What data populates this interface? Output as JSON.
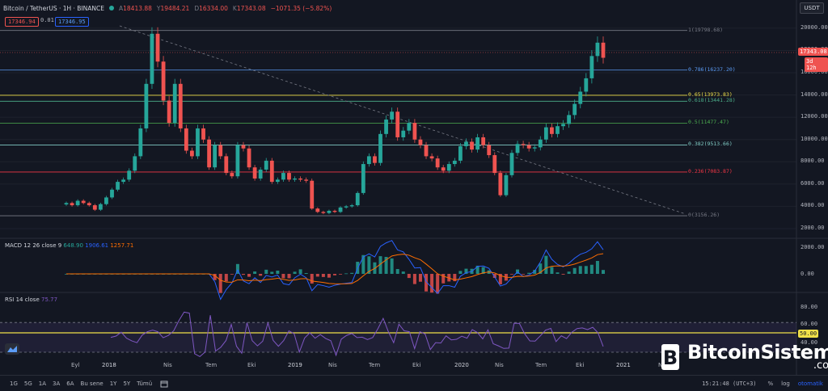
{
  "header": {
    "symbol": "Bitcoin / TetherUS · 1H · BINANCE",
    "open_label": "A",
    "open": "18413.88",
    "high_label": "Y",
    "high": "19484.21",
    "low_label": "D",
    "low": "16334.00",
    "close_label": "K",
    "close": "17343.08",
    "change": "−1071.35 (−5.82%)",
    "sell_price": "17346.94",
    "spread": "0.01",
    "buy_price": "17346.95"
  },
  "price_axis": {
    "currency": "USDT",
    "ticks": [
      "20000.00",
      "18000.00",
      "16000.00",
      "14000.00",
      "12000.00",
      "10000.00",
      "8000.00",
      "6000.00",
      "4000.00",
      "2000.00"
    ],
    "last_price": "17343.08",
    "countdown": "3d 12h"
  },
  "fib_levels": [
    {
      "label": "1(19798.68)",
      "value": 19798.68,
      "color": "#787b86"
    },
    {
      "label": "0.786(16237.20)",
      "value": 16237.2,
      "color": "#5b9cf6"
    },
    {
      "label": "0.65(13973.83)",
      "value": 13973.83,
      "color": "#f0e049"
    },
    {
      "label": "0.618(13441.28)",
      "value": 13441.28,
      "color": "#4caf8a"
    },
    {
      "label": "0.5(11477.47)",
      "value": 11477.47,
      "color": "#4caf50"
    },
    {
      "label": "0.382(9513.66)",
      "value": 9513.66,
      "color": "#80cbc4"
    },
    {
      "label": "0.236(7083.87)",
      "value": 7083.87,
      "color": "#f23645"
    },
    {
      "label": "0(3156.26)",
      "value": 3156.26,
      "color": "#787b86"
    }
  ],
  "macd": {
    "title": "MACD 12 26 close 9",
    "v1": "648.90",
    "v2": "1906.61",
    "v3": "1257.71",
    "ticks": [
      "2000.00",
      "0.00"
    ]
  },
  "rsi": {
    "title": "RSI 14 close",
    "value": "75.77",
    "ticks": [
      "80.00",
      "60.00",
      "50.00",
      "40.00"
    ]
  },
  "time_axis": [
    "Eyl",
    "2018",
    "Nis",
    "Tem",
    "Eki",
    "2019",
    "Nis",
    "Tem",
    "Eki",
    "2020",
    "Nis",
    "Tem",
    "Eki",
    "2021",
    "N"
  ],
  "bottom_bar": {
    "timeframes": [
      "1G",
      "5G",
      "1A",
      "3A",
      "6A",
      "Bu sene",
      "1Y",
      "5Y",
      "Tümü"
    ],
    "clock": "15:21:48 (UTC+3)",
    "percent": "%",
    "log": "log",
    "auto": "otomatik"
  },
  "watermark": {
    "brand": "BitcoinSistemi",
    "suffix": ".com"
  },
  "chart_data": {
    "type": "candlestick",
    "series": [
      {
        "name": "Bitcoin / TetherUS",
        "values": [
          4300,
          4100,
          4500,
          4300,
          4100,
          3700,
          4200,
          4800,
          5500,
          6200,
          6400,
          7200,
          8500,
          11000,
          15000,
          19500,
          17000,
          13500,
          11500,
          15000,
          11000,
          9000,
          8500,
          11000,
          10000,
          7500,
          9500,
          8500,
          7000,
          6700,
          9500,
          9200,
          7500,
          6500,
          7300,
          8100,
          6200,
          6400,
          7000,
          6400,
          6500,
          6400,
          6300,
          3800,
          3500,
          3400,
          3600,
          3500,
          3900,
          4000,
          4100,
          5200,
          7800,
          8500,
          7900,
          10500,
          11800,
          12500,
          10200,
          10800,
          11500,
          10000,
          9500,
          8500,
          8300,
          7500,
          7200,
          7800,
          8100,
          9400,
          9800,
          9100,
          10200,
          9500,
          8600,
          7000,
          5000,
          6800,
          8800,
          9600,
          9500,
          9200,
          9300,
          10000,
          11100,
          10500,
          11200,
          11400,
          12200,
          13200,
          14300,
          15500,
          17500,
          18700,
          17343
        ]
      }
    ],
    "ylim": [
      2000,
      20500
    ],
    "log_scale": false
  },
  "colors": {
    "up": "#26a69a",
    "down": "#ef5350",
    "bg": "#131722",
    "grid": "#1e222d",
    "macd": "#2962ff",
    "signal": "#ff6d00",
    "rsi": "#7e57c2"
  }
}
